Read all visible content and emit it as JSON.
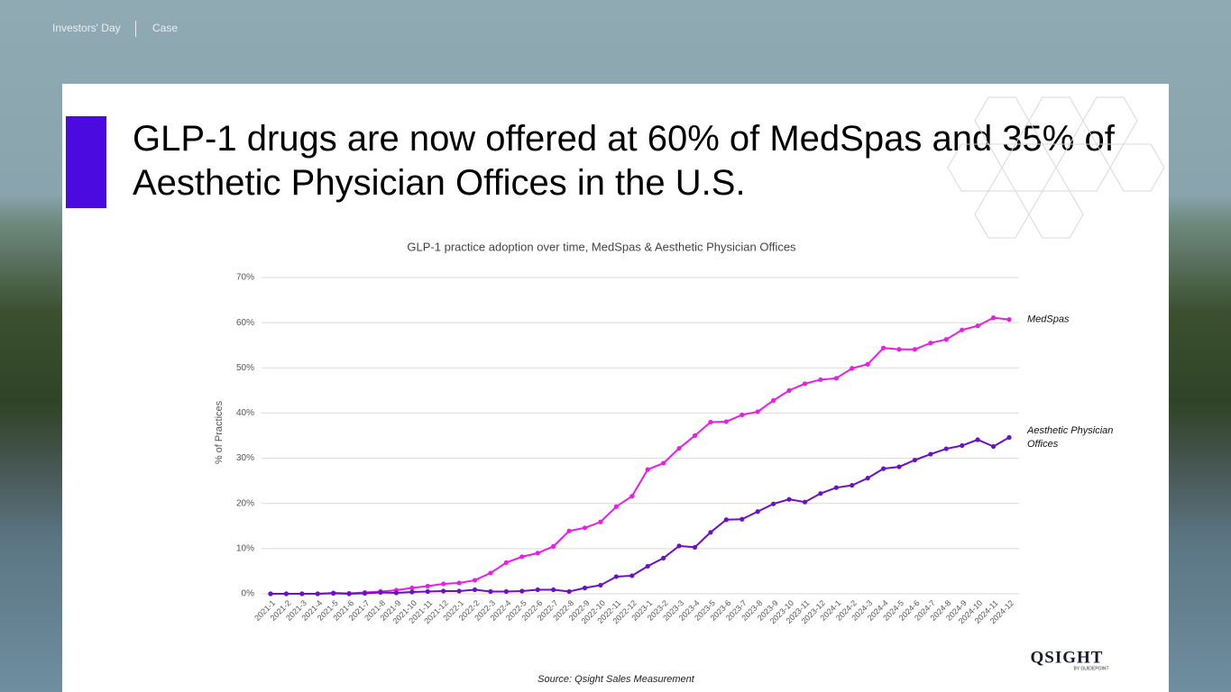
{
  "header": {
    "event": "Investors' Day",
    "section": "Case"
  },
  "headline": "GLP-1 drugs are now offered at 60% of MedSpas and 35% of Aesthetic Physician Offices in the U.S.",
  "chart_data": {
    "type": "line",
    "title": "GLP-1 practice adoption over time, MedSpas & Aesthetic Physician Offices",
    "y_label": "% of Practices",
    "categories": [
      "2021-1",
      "2021-2",
      "2021-3",
      "2021-4",
      "2021-5",
      "2021-6",
      "2021-7",
      "2021-8",
      "2021-9",
      "2021-10",
      "2021-11",
      "2021-12",
      "2022-1",
      "2022-2",
      "2022-3",
      "2022-4",
      "2022-5",
      "2022-6",
      "2022-7",
      "2022-8",
      "2022-9",
      "2022-10",
      "2022-11",
      "2022-12",
      "2023-1",
      "2023-2",
      "2023-3",
      "2023-4",
      "2023-5",
      "2023-6",
      "2023-7",
      "2023-8",
      "2023-9",
      "2023-10",
      "2023-11",
      "2023-12",
      "2024-1",
      "2024-2",
      "2024-3",
      "2024-4",
      "2024-5",
      "2024-6",
      "2024-7",
      "2024-8",
      "2024-9",
      "2024-10",
      "2024-11",
      "2024-12"
    ],
    "series": [
      {
        "name": "MedSpas",
        "color": "#e61ee6",
        "values": [
          0,
          0,
          0,
          0,
          0.2,
          0.1,
          0.3,
          0.5,
          0.8,
          1.3,
          1.7,
          2.2,
          2.4,
          3.0,
          4.6,
          6.9,
          8.2,
          9.0,
          10.5,
          13.9,
          14.6,
          15.9,
          19.3,
          21.6,
          27.5,
          28.9,
          32.2,
          35.0,
          38.0,
          38.1,
          39.6,
          40.3,
          42.8,
          45.0,
          46.5,
          47.4,
          47.7,
          49.9,
          50.8,
          54.4,
          54.1,
          54.1,
          55.5,
          56.3,
          58.4,
          59.3,
          61.1,
          60.7
        ]
      },
      {
        "name": "Aesthetic Physician Offices",
        "color": "#6a10c8",
        "values": [
          0,
          0,
          0,
          0,
          0.1,
          0,
          0.1,
          0.3,
          0.2,
          0.4,
          0.5,
          0.6,
          0.6,
          0.9,
          0.5,
          0.5,
          0.6,
          0.9,
          0.9,
          0.5,
          1.3,
          1.9,
          3.8,
          4.0,
          6.1,
          7.9,
          10.6,
          10.3,
          13.6,
          16.4,
          16.5,
          18.2,
          19.9,
          20.9,
          20.3,
          22.2,
          23.5,
          24.0,
          25.6,
          27.7,
          28.1,
          29.6,
          30.9,
          32.1,
          32.8,
          34.1,
          32.6,
          34.6
        ]
      }
    ],
    "ylim": [
      0,
      70
    ],
    "yticks": [
      {
        "value": 0,
        "label": "0%"
      },
      {
        "value": 10,
        "label": "10%"
      },
      {
        "value": 20,
        "label": "20%"
      },
      {
        "value": 30,
        "label": "30%"
      },
      {
        "value": 40,
        "label": "40%"
      },
      {
        "value": 50,
        "label": "50%"
      },
      {
        "value": 60,
        "label": "60%"
      },
      {
        "value": 70,
        "label": "70%"
      }
    ],
    "grid": true,
    "source": "Source: Qsight Sales Measurement"
  },
  "logo": {
    "name": "QSIGHT",
    "tagline": "BY GUIDEPOINT"
  }
}
